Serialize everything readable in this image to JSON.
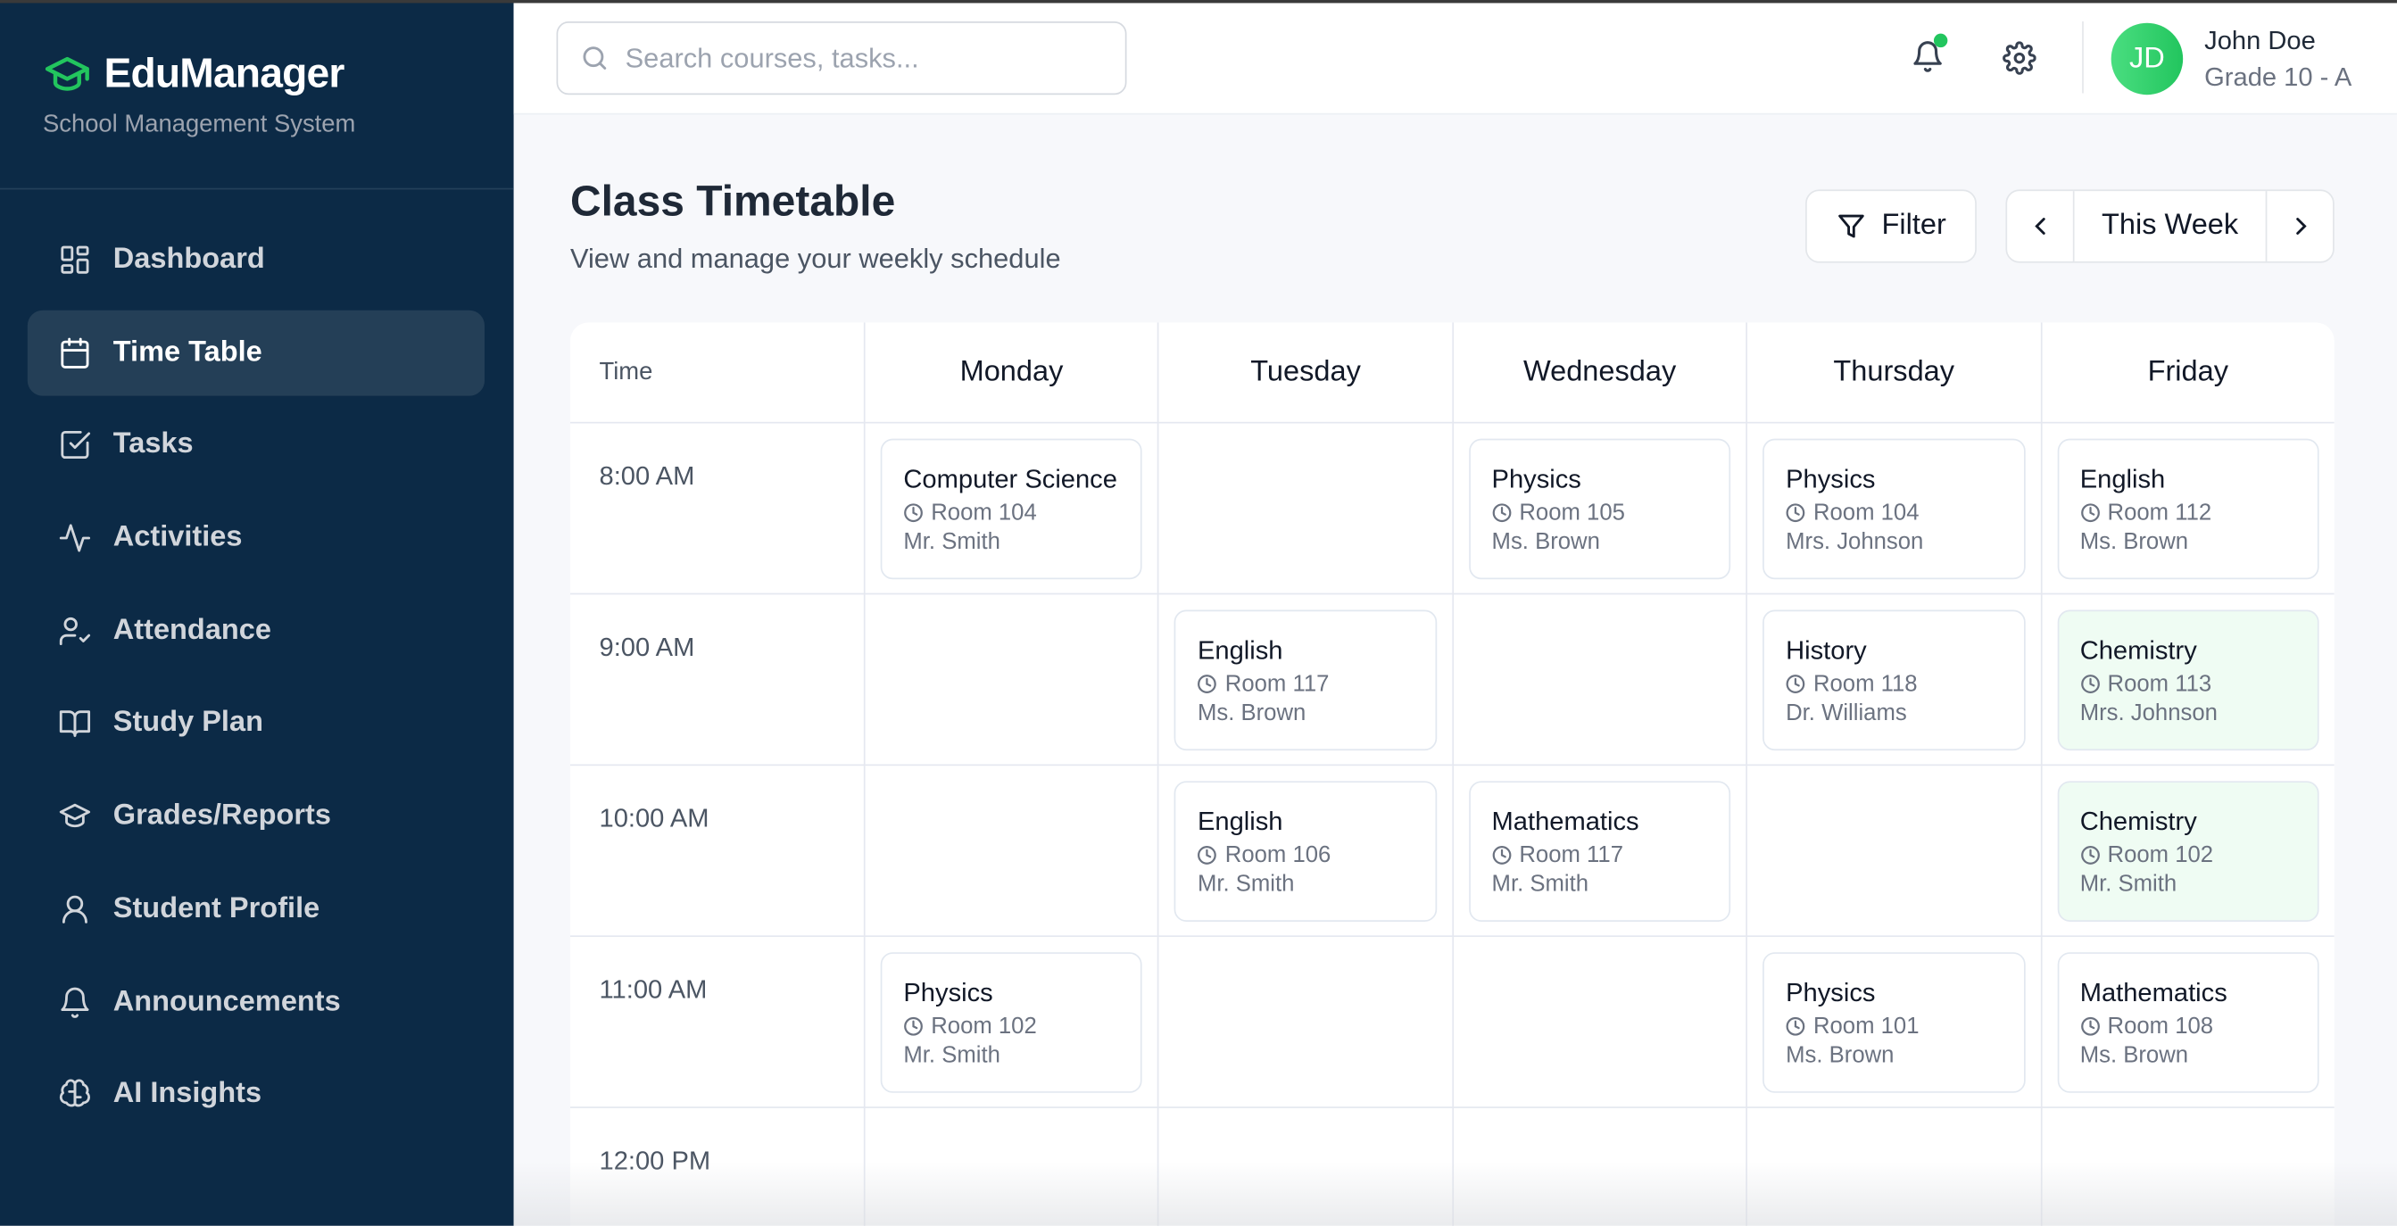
{
  "brand": {
    "name": "EduManager",
    "subtitle": "School Management System",
    "accent": "#22c55e"
  },
  "sidebar": {
    "items": [
      {
        "label": "Dashboard",
        "icon": "dashboard-icon",
        "active": false
      },
      {
        "label": "Time Table",
        "icon": "calendar-icon",
        "active": true
      },
      {
        "label": "Tasks",
        "icon": "checkbox-icon",
        "active": false
      },
      {
        "label": "Activities",
        "icon": "activity-icon",
        "active": false
      },
      {
        "label": "Attendance",
        "icon": "user-check-icon",
        "active": false
      },
      {
        "label": "Study Plan",
        "icon": "book-open-icon",
        "active": false
      },
      {
        "label": "Grades/Reports",
        "icon": "graduation-cap-icon",
        "active": false
      },
      {
        "label": "Student Profile",
        "icon": "user-icon",
        "active": false
      },
      {
        "label": "Announcements",
        "icon": "bell-icon",
        "active": false
      },
      {
        "label": "AI Insights",
        "icon": "brain-icon",
        "active": false
      }
    ]
  },
  "header": {
    "search_placeholder": "Search courses, tasks...",
    "user": {
      "initials": "JD",
      "name": "John Doe",
      "grade": "Grade 10 - A"
    }
  },
  "page": {
    "title": "Class Timetable",
    "subtitle": "View and manage your weekly schedule",
    "filter_label": "Filter",
    "week_label": "This Week"
  },
  "timetable": {
    "time_header": "Time",
    "days": [
      "Monday",
      "Tuesday",
      "Wednesday",
      "Thursday",
      "Friday"
    ],
    "rows": [
      {
        "time": "8:00 AM",
        "slots": [
          {
            "subject": "Computer Science",
            "room": "Room 104",
            "teacher": "Mr. Smith"
          },
          null,
          {
            "subject": "Physics",
            "room": "Room 105",
            "teacher": "Ms. Brown"
          },
          {
            "subject": "Physics",
            "room": "Room 104",
            "teacher": "Mrs. Johnson"
          },
          {
            "subject": "English",
            "room": "Room 112",
            "teacher": "Ms. Brown"
          }
        ]
      },
      {
        "time": "9:00 AM",
        "slots": [
          null,
          {
            "subject": "English",
            "room": "Room 117",
            "teacher": "Ms. Brown"
          },
          null,
          {
            "subject": "History",
            "room": "Room 118",
            "teacher": "Dr. Williams"
          },
          {
            "subject": "Chemistry",
            "room": "Room 113",
            "teacher": "Mrs. Johnson",
            "highlight": true
          }
        ]
      },
      {
        "time": "10:00 AM",
        "slots": [
          null,
          {
            "subject": "English",
            "room": "Room 106",
            "teacher": "Mr. Smith"
          },
          {
            "subject": "Mathematics",
            "room": "Room 117",
            "teacher": "Mr. Smith"
          },
          null,
          {
            "subject": "Chemistry",
            "room": "Room 102",
            "teacher": "Mr. Smith",
            "highlight": true
          }
        ]
      },
      {
        "time": "11:00 AM",
        "slots": [
          {
            "subject": "Physics",
            "room": "Room 102",
            "teacher": "Mr. Smith"
          },
          null,
          null,
          {
            "subject": "Physics",
            "room": "Room 101",
            "teacher": "Ms. Brown"
          },
          {
            "subject": "Mathematics",
            "room": "Room 108",
            "teacher": "Ms. Brown"
          }
        ]
      },
      {
        "time": "12:00 PM",
        "slots": [
          null,
          null,
          null,
          null,
          null
        ]
      }
    ]
  }
}
